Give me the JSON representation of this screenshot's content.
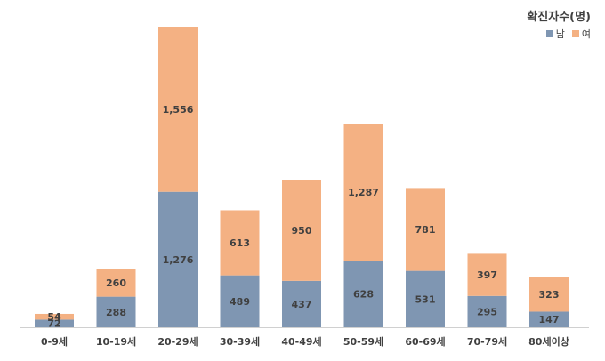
{
  "chart_data": {
    "type": "bar",
    "stacked": true,
    "categories": [
      "0-9세",
      "10-19세",
      "20-29세",
      "30-39세",
      "40-49세",
      "50-59세",
      "60-69세",
      "70-79세",
      "80세이상"
    ],
    "series": [
      {
        "name": "남",
        "color": "#7f96b2",
        "values": [
          72,
          288,
          1276,
          489,
          437,
          628,
          531,
          295,
          147
        ],
        "labels": [
          "72",
          "288",
          "1,276",
          "489",
          "437",
          "628",
          "531",
          "295",
          "147"
        ]
      },
      {
        "name": "여",
        "color": "#f4b183",
        "values": [
          54,
          260,
          1556,
          613,
          950,
          1287,
          781,
          397,
          323
        ],
        "labels": [
          "54",
          "260",
          "1,556",
          "613",
          "950",
          "1,287",
          "781",
          "397",
          "323"
        ]
      }
    ],
    "legend_title": "확진자수(명)",
    "legend_position": "top-right",
    "ylim": [
      0,
      2850
    ],
    "grid": false
  }
}
